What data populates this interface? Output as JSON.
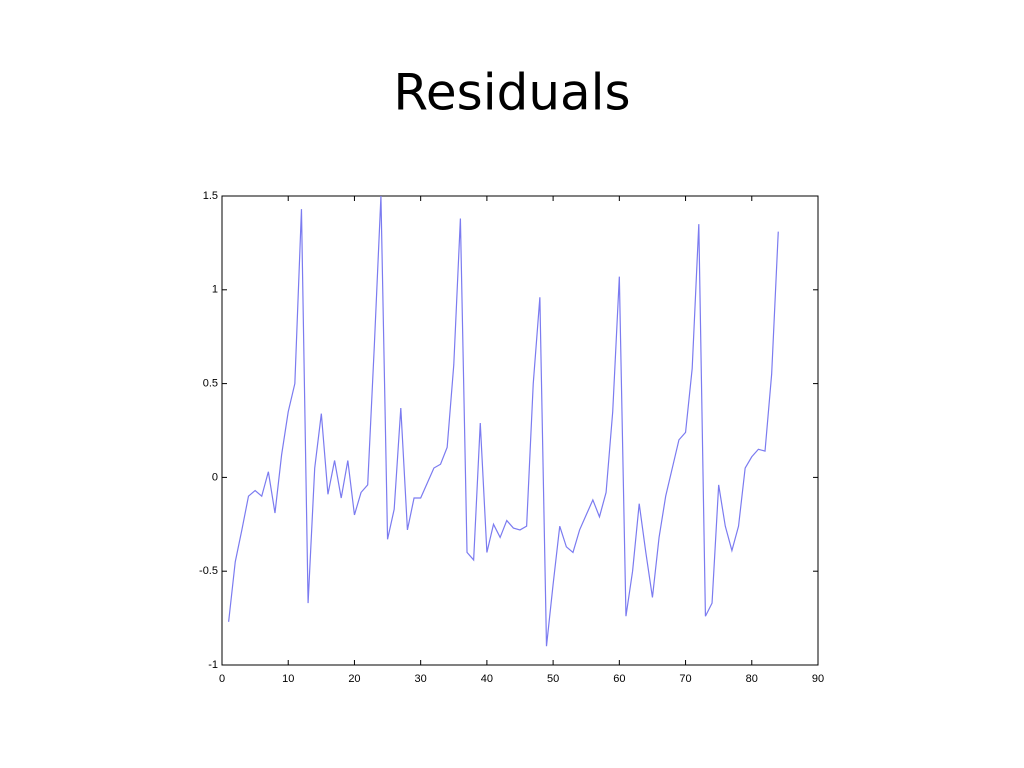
{
  "chart_data": {
    "type": "line",
    "title": "Residuals",
    "x": [
      1,
      2,
      3,
      4,
      5,
      6,
      7,
      8,
      9,
      10,
      11,
      12,
      13,
      14,
      15,
      16,
      17,
      18,
      19,
      20,
      21,
      22,
      23,
      24,
      25,
      26,
      27,
      28,
      29,
      30,
      31,
      32,
      33,
      34,
      35,
      36,
      37,
      38,
      39,
      40,
      41,
      42,
      43,
      44,
      45,
      46,
      47,
      48,
      49,
      50,
      51,
      52,
      53,
      54,
      55,
      56,
      57,
      58,
      59,
      60,
      61,
      62,
      63,
      64,
      65,
      66,
      67,
      68,
      69,
      70,
      71,
      72,
      73,
      74,
      75,
      76,
      77,
      78,
      79,
      80,
      81,
      82,
      83,
      84
    ],
    "values": [
      -0.77,
      -0.45,
      -0.28,
      -0.1,
      -0.07,
      -0.1,
      0.03,
      -0.19,
      0.12,
      0.35,
      0.5,
      1.43,
      -0.67,
      0.05,
      0.34,
      -0.09,
      0.09,
      -0.11,
      0.09,
      -0.2,
      -0.08,
      -0.04,
      0.7,
      1.5,
      -0.33,
      -0.17,
      0.37,
      -0.28,
      -0.11,
      -0.11,
      -0.03,
      0.05,
      0.07,
      0.16,
      0.6,
      1.38,
      -0.4,
      -0.44,
      0.29,
      -0.4,
      -0.25,
      -0.32,
      -0.23,
      -0.27,
      -0.28,
      -0.26,
      0.5,
      0.96,
      -0.9,
      -0.57,
      -0.26,
      -0.37,
      -0.4,
      -0.28,
      -0.2,
      -0.12,
      -0.21,
      -0.08,
      0.35,
      1.07,
      -0.74,
      -0.5,
      -0.14,
      -0.4,
      -0.64,
      -0.32,
      -0.1,
      0.05,
      0.2,
      0.24,
      0.58,
      1.35,
      -0.74,
      -0.67,
      -0.04,
      -0.26,
      -0.39,
      -0.26,
      0.05,
      0.11,
      0.15,
      0.14,
      0.55,
      1.31
    ],
    "color": "#7b7bf0",
    "xlim": [
      0,
      90
    ],
    "xticks": [
      0,
      10,
      20,
      30,
      40,
      50,
      60,
      70,
      80,
      90
    ],
    "ylim": [
      -1,
      1.5
    ],
    "yticks": [
      -1,
      -0.5,
      0,
      0.5,
      1,
      1.5
    ]
  }
}
